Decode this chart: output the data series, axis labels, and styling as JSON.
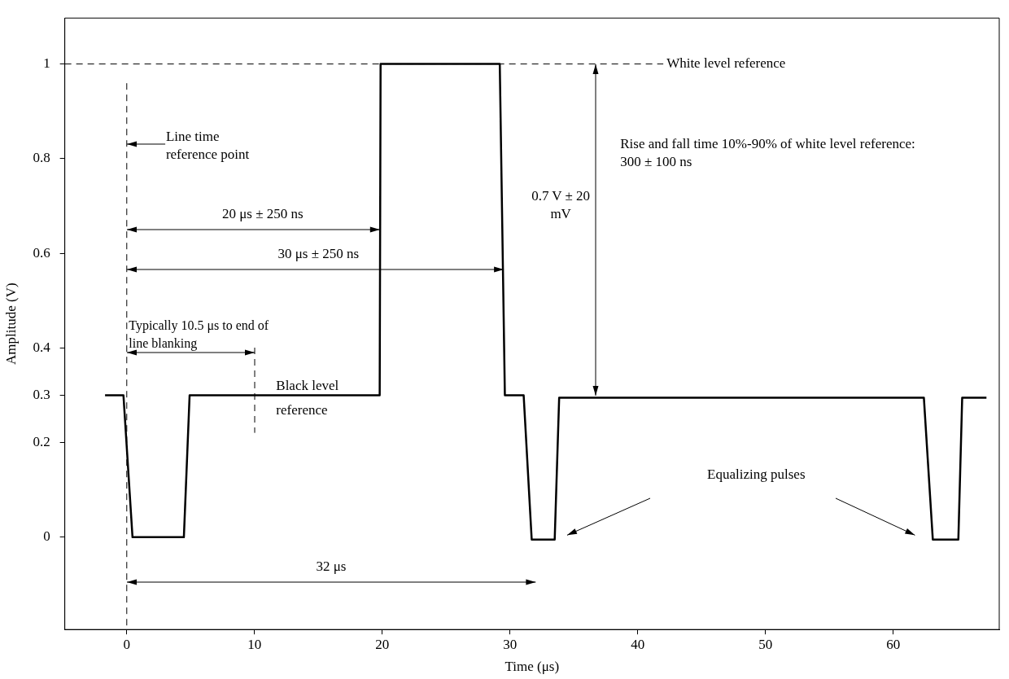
{
  "chart_data": {
    "type": "line",
    "xlabel": "Time (μs)",
    "ylabel": "Amplitude (V)",
    "x": [
      -1.7,
      -0.26,
      0.45,
      4.47,
      4.92,
      19.8,
      19.87,
      29.2,
      29.6,
      31.07,
      31.7,
      33.5,
      33.85,
      62.4,
      63.1,
      65.1,
      65.4,
      67.3
    ],
    "series": [
      {
        "color": "#000000",
        "values": [
          0.3,
          0.3,
          0,
          0,
          0.3,
          0.3,
          1,
          1,
          0.3,
          0.3,
          -0.005,
          -0.005,
          0.295,
          0.295,
          -0.005,
          -0.005,
          0.295,
          0.295
        ]
      }
    ],
    "xlim": [
      -4.85,
      68.3
    ],
    "ylim": [
      -0.195,
      1.097
    ],
    "xticks": [
      0,
      10,
      20,
      30,
      40,
      50,
      60
    ],
    "yticks": [
      0,
      0.2,
      0.3,
      0.4,
      0.6,
      0.8,
      1
    ],
    "grid": false,
    "legend": false,
    "marker": "none",
    "line_style": "solid",
    "ref_lines": [
      {
        "axis": "x",
        "value": 0,
        "line_style": "dashed",
        "color": "#000000"
      },
      {
        "axis": "y",
        "value": 1,
        "label": "White level reference",
        "line_style": "dashed",
        "color": "#000000"
      }
    ],
    "annotations": [
      "Line time reference point",
      "20 μs ± 250 ns",
      "30 μs ± 250 ns",
      "Typically 10.5 μs to end of line blanking",
      "Black level reference",
      "32 μs",
      "0.7 V ± 20 mV",
      "Rise and fall time 10%-90% of white level reference: 300 ± 100 ns",
      "Equalizing pulses"
    ]
  }
}
